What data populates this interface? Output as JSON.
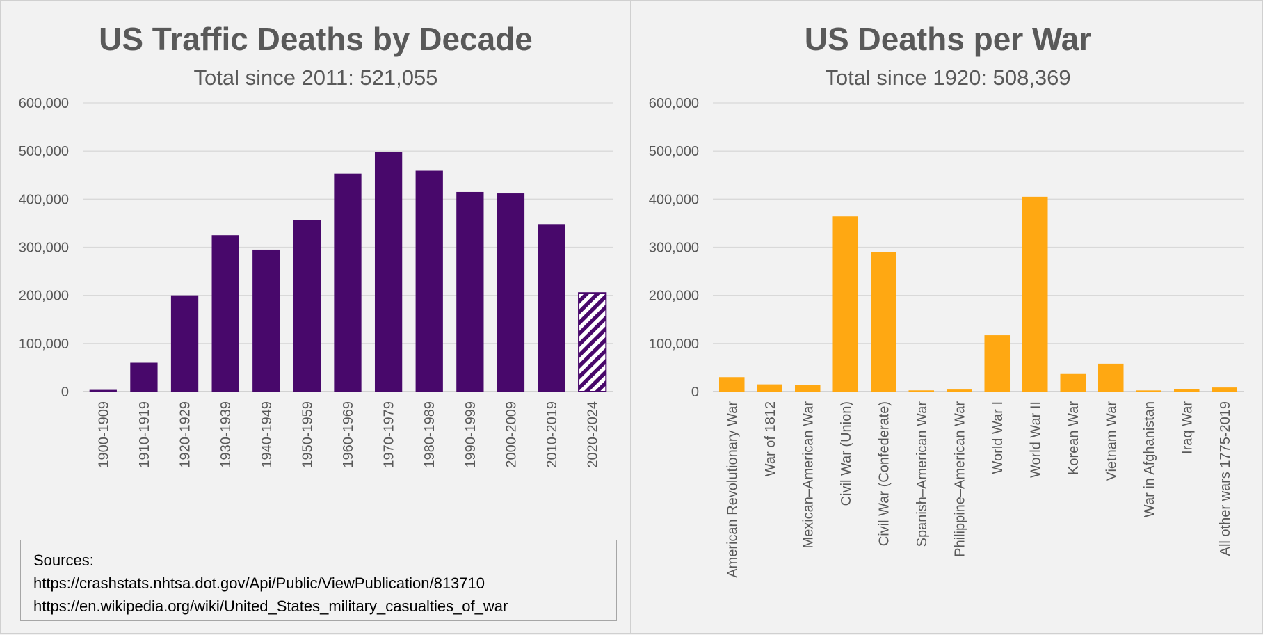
{
  "colors": {
    "traffic_bar": "#48086b",
    "war_bar": "#ffa812",
    "text": "#595959",
    "grid": "#d9d9d9",
    "background": "#f2f2f2"
  },
  "sources": {
    "label": "Sources:",
    "links": [
      "https://crashstats.nhtsa.dot.gov/Api/Public/ViewPublication/813710",
      "https://en.wikipedia.org/wiki/United_States_military_casualties_of_war"
    ]
  },
  "chart_data": [
    {
      "type": "bar",
      "title": "US Traffic Deaths by Decade",
      "subtitle": "Total since 2011:  521,055",
      "xlabel": "",
      "ylabel": "",
      "ylim": [
        0,
        600000
      ],
      "y_ticks": [
        "0",
        "100,000",
        "200,000",
        "300,000",
        "400,000",
        "500,000",
        "600,000"
      ],
      "grid": true,
      "legend": "none",
      "categories": [
        "1900-1909",
        "1910-1919",
        "1920-1929",
        "1930-1939",
        "1940-1949",
        "1950-1959",
        "1960-1969",
        "1970-1979",
        "1980-1989",
        "1990-1999",
        "2000-2009",
        "2010-2019",
        "2020-2024"
      ],
      "values": [
        3500,
        60000,
        200000,
        325000,
        295000,
        357000,
        453000,
        498000,
        459000,
        415000,
        412000,
        348000,
        205000
      ],
      "hatched_categories": [
        "2020-2024"
      ]
    },
    {
      "type": "bar",
      "title": "US Deaths per War",
      "subtitle": "Total since 1920:  508,369",
      "xlabel": "",
      "ylabel": "",
      "ylim": [
        0,
        600000
      ],
      "y_ticks": [
        "0",
        "100,000",
        "200,000",
        "300,000",
        "400,000",
        "500,000",
        "600,000"
      ],
      "grid": true,
      "legend": "none",
      "categories": [
        "American Revolutionary War",
        "War of 1812",
        "Mexican–American War",
        "Civil War (Union)",
        "Civil War (Confederate)",
        "Spanish–American War",
        "Philippine–American War",
        "World War I",
        "World War II",
        "Korean War",
        "Vietnam War",
        "War in Afghanistan",
        "Iraq War",
        "All other wars 1775-2019"
      ],
      "values": [
        30000,
        15000,
        13000,
        364000,
        290000,
        2500,
        4200,
        117000,
        405000,
        36500,
        58000,
        2400,
        4500,
        8500
      ]
    }
  ]
}
